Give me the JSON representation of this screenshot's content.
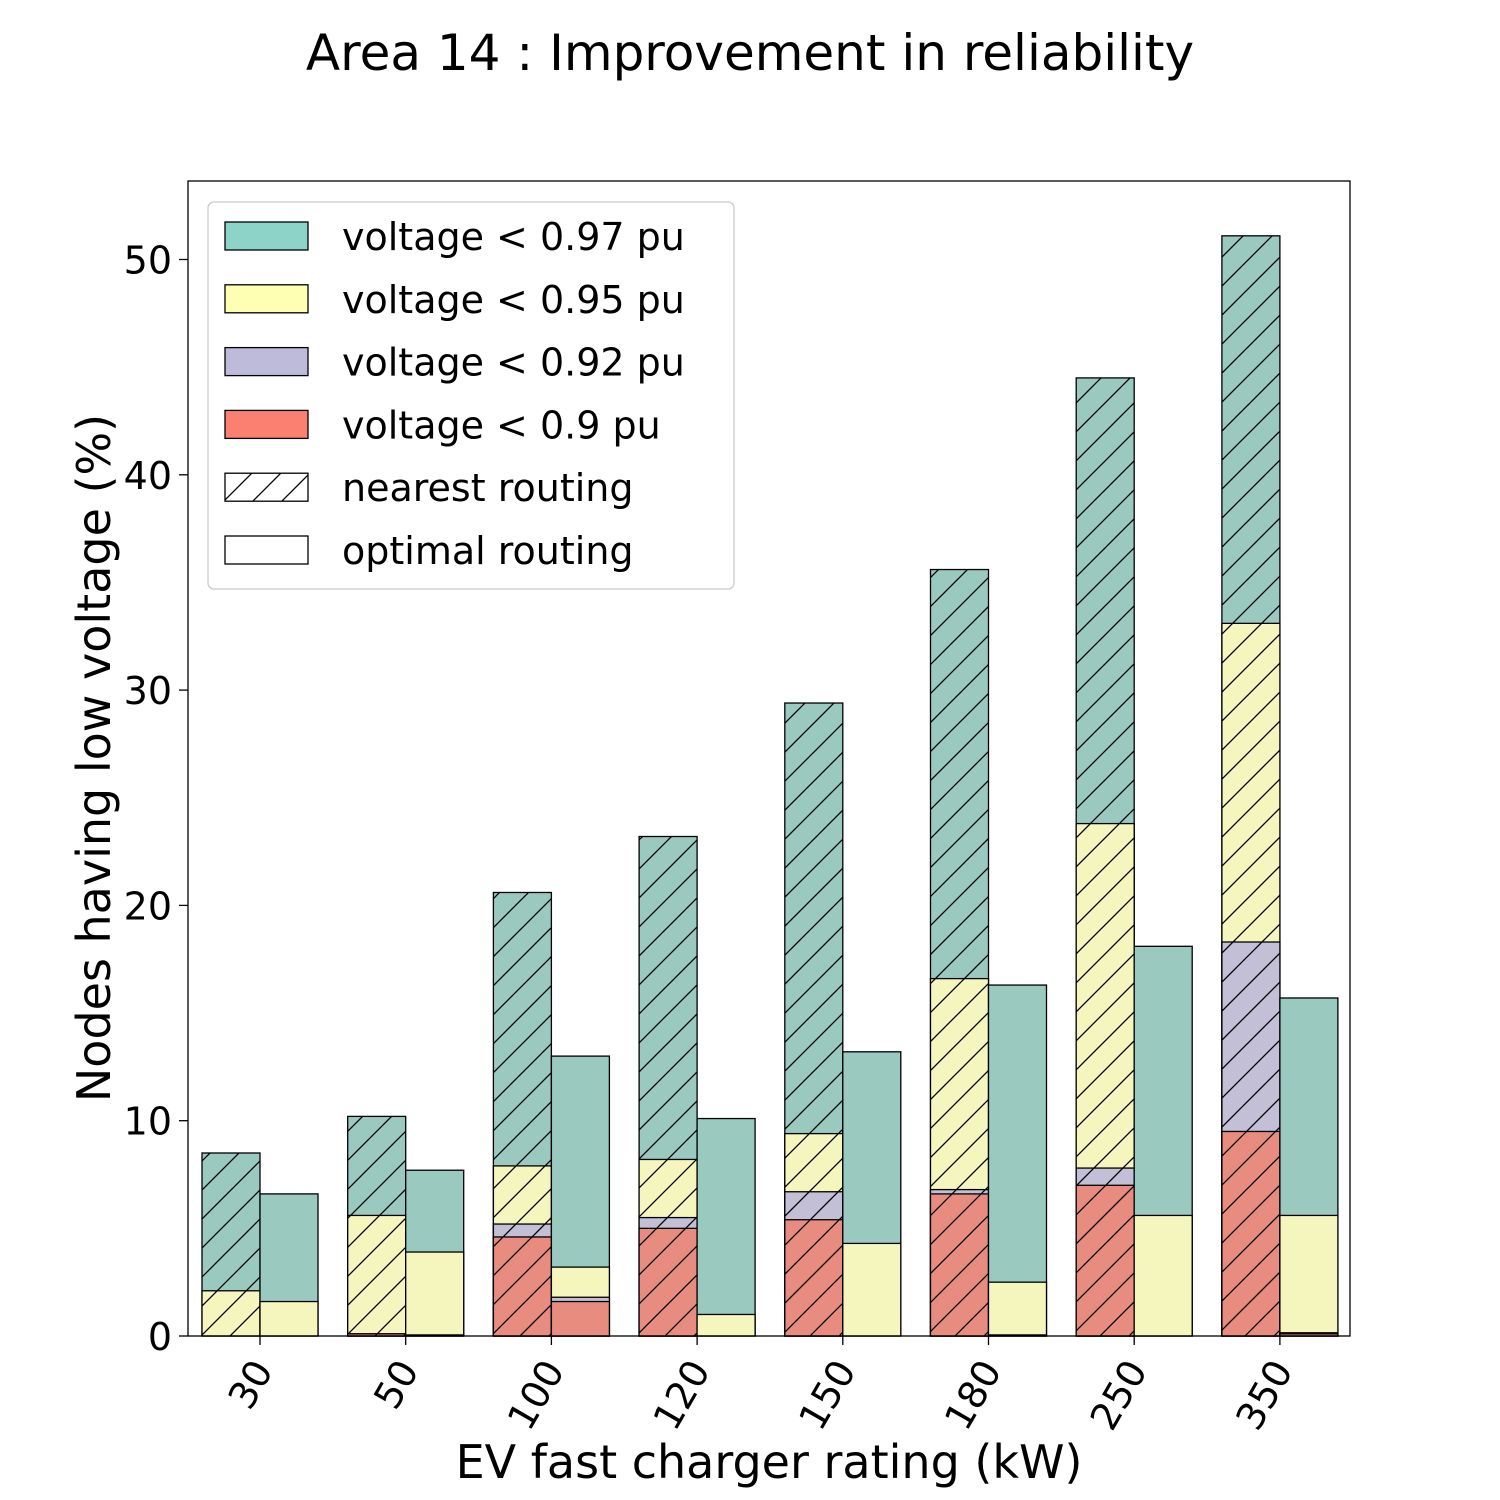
{
  "chart_data": {
    "type": "bar",
    "subtype": "grouped-stacked",
    "title": "Area 14 : Improvement in reliability",
    "xlabel": "EV fast charger rating (kW)",
    "ylabel": "Nodes having low voltage (%)",
    "categories": [
      "30",
      "50",
      "100",
      "120",
      "150",
      "180",
      "250",
      "350"
    ],
    "ylim": [
      0,
      53.5
    ],
    "yticks": [
      0,
      10,
      20,
      30,
      40,
      50
    ],
    "grid": false,
    "legend_position": "upper-left",
    "legend": [
      {
        "label": "voltage < 0.97 pu",
        "kind": "color",
        "color": "#8dd3c7"
      },
      {
        "label": "voltage < 0.95 pu",
        "kind": "color",
        "color": "#ffffb3"
      },
      {
        "label": "voltage < 0.92 pu",
        "kind": "color",
        "color": "#bebada"
      },
      {
        "label": "voltage < 0.9 pu",
        "kind": "color",
        "color": "#fb8072"
      },
      {
        "label": "nearest routing",
        "kind": "hatch"
      },
      {
        "label": "optimal routing",
        "kind": "plain"
      }
    ],
    "series": [
      {
        "routing": "nearest routing",
        "threshold": "voltage < 0.97 pu",
        "color": "#99c9bf",
        "hatched": true,
        "values": [
          8.5,
          10.2,
          20.6,
          23.2,
          29.4,
          35.6,
          44.5,
          51.1
        ]
      },
      {
        "routing": "nearest routing",
        "threshold": "voltage < 0.95 pu",
        "color": "#f5f5be",
        "hatched": true,
        "values": [
          2.1,
          5.6,
          7.9,
          8.2,
          9.4,
          16.6,
          23.8,
          33.1
        ]
      },
      {
        "routing": "nearest routing",
        "threshold": "voltage < 0.92 pu",
        "color": "#c2bfd7",
        "hatched": true,
        "values": [
          0.0,
          0.1,
          5.2,
          5.5,
          6.7,
          6.8,
          7.8,
          18.3
        ]
      },
      {
        "routing": "nearest routing",
        "threshold": "voltage < 0.9 pu",
        "color": "#e88c80",
        "hatched": true,
        "values": [
          0.0,
          0.1,
          4.6,
          5.0,
          5.4,
          6.6,
          7.0,
          9.5
        ]
      },
      {
        "routing": "optimal routing",
        "threshold": "voltage < 0.97 pu",
        "color": "#99c9bf",
        "hatched": false,
        "values": [
          6.6,
          7.7,
          13.0,
          10.1,
          13.2,
          16.3,
          18.1,
          15.7
        ]
      },
      {
        "routing": "optimal routing",
        "threshold": "voltage < 0.95 pu",
        "color": "#f5f5be",
        "hatched": false,
        "values": [
          1.6,
          3.9,
          3.2,
          1.0,
          4.3,
          2.5,
          5.6,
          5.6
        ]
      },
      {
        "routing": "optimal routing",
        "threshold": "voltage < 0.92 pu",
        "color": "#c2bfd7",
        "hatched": false,
        "values": [
          0.0,
          0.05,
          1.8,
          0.0,
          0.0,
          0.05,
          0.0,
          0.15
        ]
      },
      {
        "routing": "optimal routing",
        "threshold": "voltage < 0.9 pu",
        "color": "#e88c80",
        "hatched": false,
        "values": [
          0.0,
          0.0,
          1.6,
          0.0,
          0.0,
          0.0,
          0.0,
          0.1
        ]
      }
    ]
  }
}
